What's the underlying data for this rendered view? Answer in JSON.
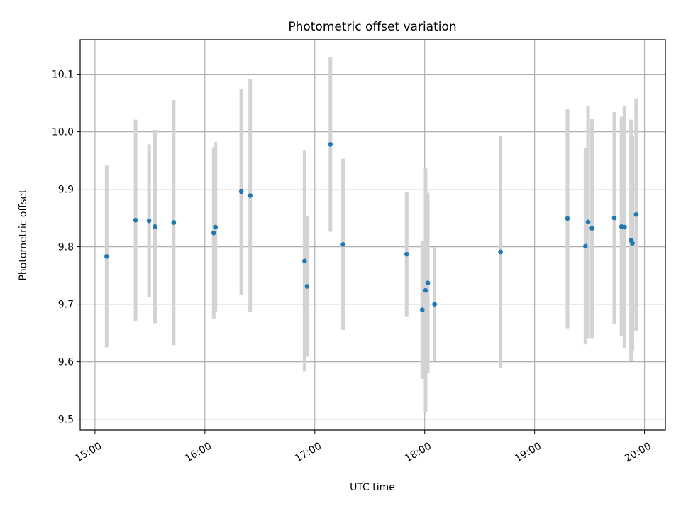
{
  "chart_data": {
    "type": "scatter",
    "title": "Photometric offset variation",
    "xlabel": "UTC time",
    "ylabel": "Photometric offset",
    "xlim_hours": [
      14.865,
      20.19
    ],
    "ylim": [
      9.481,
      10.16
    ],
    "grid": true,
    "x_ticks": [
      {
        "hour": 15,
        "label": "15:00"
      },
      {
        "hour": 16,
        "label": "16:00"
      },
      {
        "hour": 17,
        "label": "17:00"
      },
      {
        "hour": 18,
        "label": "18:00"
      },
      {
        "hour": 19,
        "label": "19:00"
      },
      {
        "hour": 20,
        "label": "20:00"
      }
    ],
    "y_ticks": [
      {
        "value": 9.5,
        "label": "9.5"
      },
      {
        "value": 9.6,
        "label": "9.6"
      },
      {
        "value": 9.7,
        "label": "9.7"
      },
      {
        "value": 9.8,
        "label": "9.8"
      },
      {
        "value": 9.9,
        "label": "9.9"
      },
      {
        "value": 10.0,
        "label": "10.0"
      },
      {
        "value": 10.1,
        "label": "10.1"
      }
    ],
    "colors": {
      "point": "#1f77b4",
      "errorbar": "#d3d3d3",
      "grid": "#b0b0b0"
    },
    "points": [
      {
        "time": "15:06",
        "hour": 15.106,
        "value": 9.783,
        "err": 0.158
      },
      {
        "time": "15:22",
        "hour": 15.369,
        "value": 9.846,
        "err": 0.175
      },
      {
        "time": "15:29",
        "hour": 15.492,
        "value": 9.845,
        "err": 0.133
      },
      {
        "time": "15:32",
        "hour": 15.546,
        "value": 9.835,
        "err": 0.168
      },
      {
        "time": "15:43",
        "hour": 15.716,
        "value": 9.842,
        "err": 0.213
      },
      {
        "time": "16:05",
        "hour": 16.08,
        "value": 9.824,
        "err": 0.149
      },
      {
        "time": "16:06",
        "hour": 16.096,
        "value": 9.834,
        "err": 0.148
      },
      {
        "time": "16:20",
        "hour": 16.331,
        "value": 9.896,
        "err": 0.179
      },
      {
        "time": "16:25",
        "hour": 16.412,
        "value": 9.889,
        "err": 0.203
      },
      {
        "time": "16:54",
        "hour": 16.907,
        "value": 9.775,
        "err": 0.192
      },
      {
        "time": "16:56",
        "hour": 16.93,
        "value": 9.731,
        "err": 0.122
      },
      {
        "time": "17:09",
        "hour": 17.142,
        "value": 9.978,
        "err": 0.152
      },
      {
        "time": "17:16",
        "hour": 17.257,
        "value": 9.804,
        "err": 0.149
      },
      {
        "time": "17:50",
        "hour": 17.836,
        "value": 9.787,
        "err": 0.108
      },
      {
        "time": "17:59",
        "hour": 17.978,
        "value": 9.69,
        "err": 0.12
      },
      {
        "time": "18:00",
        "hour": 18.008,
        "value": 9.724,
        "err": 0.212
      },
      {
        "time": "18:01",
        "hour": 18.028,
        "value": 9.737,
        "err": 0.157
      },
      {
        "time": "18:05",
        "hour": 18.09,
        "value": 9.7,
        "err": 0.099
      },
      {
        "time": "18:41",
        "hour": 18.69,
        "value": 9.791,
        "err": 0.202
      },
      {
        "time": "19:18",
        "hour": 19.299,
        "value": 9.849,
        "err": 0.191
      },
      {
        "time": "19:27",
        "hour": 19.463,
        "value": 9.801,
        "err": 0.171
      },
      {
        "time": "19:29",
        "hour": 19.487,
        "value": 9.843,
        "err": 0.202
      },
      {
        "time": "19:31",
        "hour": 19.522,
        "value": 9.832,
        "err": 0.191
      },
      {
        "time": "19:43",
        "hour": 19.725,
        "value": 9.85,
        "err": 0.184
      },
      {
        "time": "19:47",
        "hour": 19.791,
        "value": 9.835,
        "err": 0.191
      },
      {
        "time": "19:49",
        "hour": 19.818,
        "value": 9.834,
        "err": 0.211
      },
      {
        "time": "19:53",
        "hour": 19.878,
        "value": 9.811,
        "err": 0.21
      },
      {
        "time": "19:53",
        "hour": 19.89,
        "value": 9.806,
        "err": 0.187
      },
      {
        "time": "19:55",
        "hour": 19.924,
        "value": 9.856,
        "err": 0.202
      }
    ]
  }
}
